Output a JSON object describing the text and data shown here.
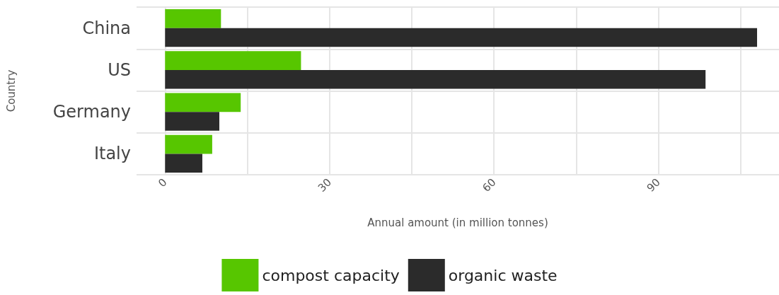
{
  "chart_data": {
    "type": "bar",
    "orientation": "horizontal",
    "xlabel": "Annual amount (in million tonnes)",
    "ylabel": "Country",
    "categories": [
      "China",
      "US",
      "Germany",
      "Italy"
    ],
    "series": [
      {
        "name": "compost capacity",
        "color": "#57c600",
        "values": [
          10.2,
          24.8,
          13.8,
          8.6
        ]
      },
      {
        "name": "organic waste",
        "color": "#2b2b2b",
        "values": [
          108,
          98.6,
          9.9,
          6.8
        ]
      }
    ],
    "xlim": [
      -5.2,
      112
    ],
    "xticks": [
      0,
      {
        "value": 15,
        "label": null
      },
      30,
      {
        "value": 45,
        "label": null
      },
      60,
      {
        "value": 75,
        "label": null
      },
      90,
      {
        "value": 105,
        "label": null
      }
    ],
    "grid": true,
    "legend": "bottom"
  }
}
